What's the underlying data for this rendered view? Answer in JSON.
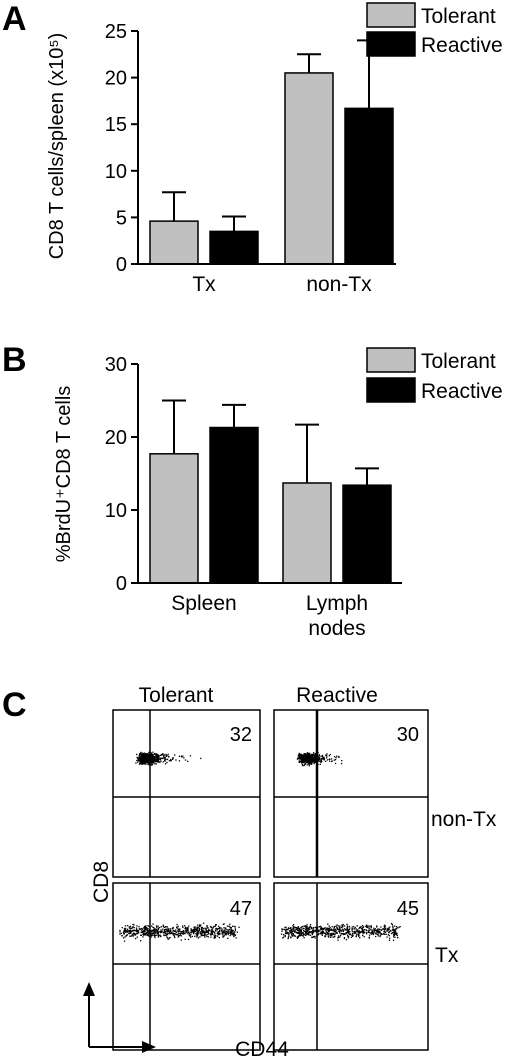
{
  "colors": {
    "tolerant": "#c0c0c0",
    "reactive": "#000000",
    "axis": "#000000"
  },
  "chart_data": [
    {
      "panel": "A",
      "type": "bar",
      "ylabel": "CD8 T cells/spleen (x10⁵)",
      "ylim": [
        0,
        25
      ],
      "yticks": [
        0,
        5,
        10,
        15,
        20,
        25
      ],
      "categories": [
        "Tx",
        "non-Tx"
      ],
      "series": [
        {
          "name": "Tolerant",
          "values": [
            4.6,
            20.5
          ],
          "errors": [
            3.1,
            2.0
          ]
        },
        {
          "name": "Reactive",
          "values": [
            3.5,
            16.7
          ],
          "errors": [
            1.6,
            7.3
          ]
        }
      ],
      "legend": "top-right"
    },
    {
      "panel": "B",
      "type": "bar",
      "ylabel": "%BrdU⁺CD8 T cells",
      "ylim": [
        0,
        30
      ],
      "yticks": [
        0,
        10,
        20,
        30
      ],
      "categories": [
        "Spleen",
        "Lymph\nnodes"
      ],
      "series": [
        {
          "name": "Tolerant",
          "values": [
            17.7,
            13.7
          ],
          "errors": [
            7.3,
            8.0
          ]
        },
        {
          "name": "Reactive",
          "values": [
            21.3,
            13.4
          ],
          "errors": [
            3.1,
            2.3
          ]
        }
      ],
      "legend": "top-right"
    }
  ],
  "flow": {
    "panel": "C",
    "col_labels": [
      "Tolerant",
      "Reactive"
    ],
    "row_labels": [
      "non-Tx",
      "Tx"
    ],
    "percentages": [
      [
        "32",
        "30"
      ],
      [
        "47",
        "45"
      ]
    ],
    "x_axis": "CD44",
    "y_axis": "CD8"
  }
}
